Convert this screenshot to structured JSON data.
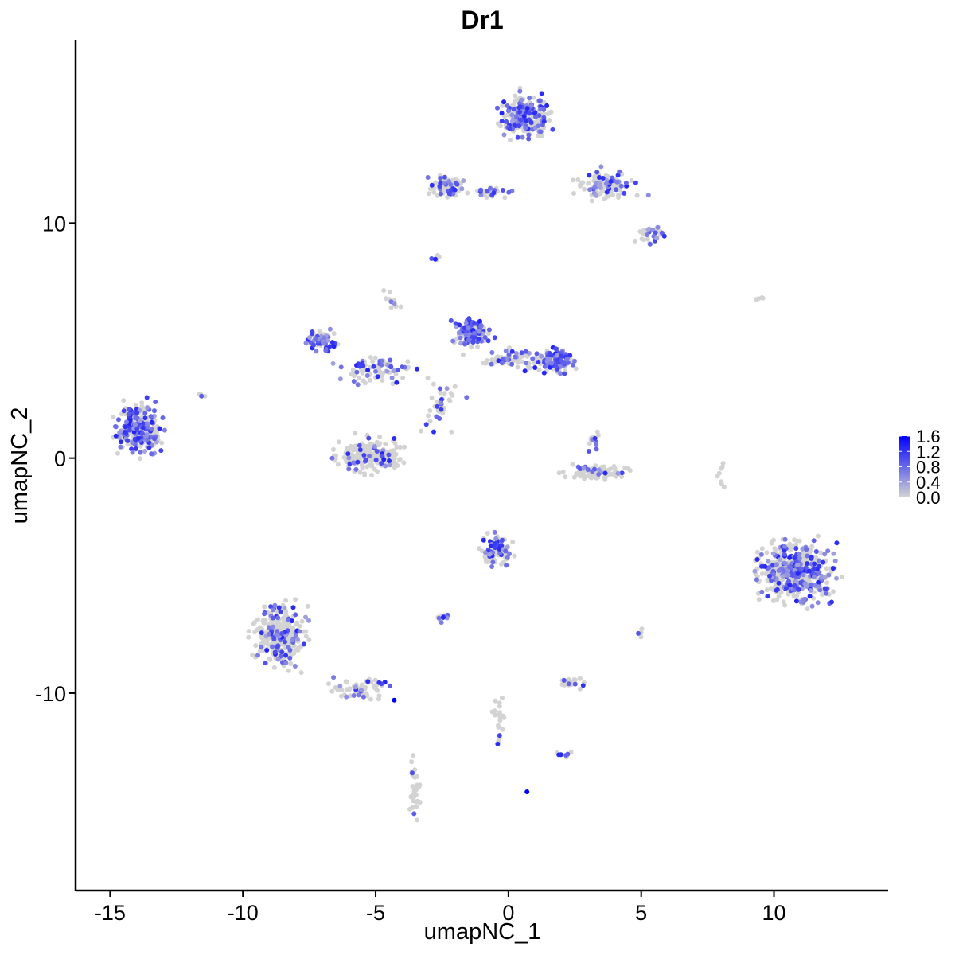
{
  "chart_data": {
    "type": "scatter",
    "title": "Dr1",
    "xlabel": "umapNC_1",
    "ylabel": "umapNC_2",
    "xlim": [
      -16.3,
      14.3
    ],
    "ylim": [
      -18.4,
      17.8
    ],
    "xticks": [
      -15,
      -10,
      -5,
      0,
      5,
      10
    ],
    "xtick_labels": [
      "-15",
      "-10",
      "-5",
      "0",
      "5",
      "10"
    ],
    "yticks": [
      -10,
      0,
      10
    ],
    "ytick_labels": [
      "-10",
      "0",
      "10"
    ],
    "grid": false,
    "legend": {
      "position": "right",
      "type": "colorbar",
      "min": 0.0,
      "max": 1.6,
      "ticks": [
        0.0,
        0.4,
        0.8,
        1.2,
        1.6
      ],
      "tick_labels": [
        "0.0",
        "0.4",
        "0.8",
        "1.2",
        "1.6"
      ],
      "low_color": "#d3d3d3",
      "high_color": "#0000ff"
    },
    "clusters": [
      {
        "cx": -13.9,
        "cy": 1.2,
        "sx": 0.75,
        "sy": 0.9,
        "n": 260,
        "expr": 0.55
      },
      {
        "cx": -11.6,
        "cy": 2.7,
        "sx": 0.15,
        "sy": 0.1,
        "n": 4,
        "expr": 0.5
      },
      {
        "cx": -7.0,
        "cy": 5.0,
        "sx": 0.5,
        "sy": 0.45,
        "n": 70,
        "expr": 0.5
      },
      {
        "cx": -5.0,
        "cy": 3.8,
        "sx": 1.3,
        "sy": 0.6,
        "n": 80,
        "expr": 0.4
      },
      {
        "cx": -5.2,
        "cy": 0.1,
        "sx": 1.1,
        "sy": 0.6,
        "n": 210,
        "expr": 0.15
      },
      {
        "cx": -4.4,
        "cy": 6.8,
        "sx": 0.25,
        "sy": 0.4,
        "n": 10,
        "expr": 0.3
      },
      {
        "cx": -1.4,
        "cy": 5.4,
        "sx": 0.55,
        "sy": 0.55,
        "n": 130,
        "expr": 0.75
      },
      {
        "cx": 1.9,
        "cy": 4.1,
        "sx": 0.6,
        "sy": 0.45,
        "n": 110,
        "expr": 0.6
      },
      {
        "cx": 0.2,
        "cy": 4.2,
        "sx": 1.2,
        "sy": 0.35,
        "n": 80,
        "expr": 0.35
      },
      {
        "cx": -2.6,
        "cy": 2.3,
        "sx": 0.6,
        "sy": 1.0,
        "n": 40,
        "expr": 0.2
      },
      {
        "cx": 3.3,
        "cy": -0.6,
        "sx": 1.0,
        "sy": 0.25,
        "n": 90,
        "expr": 0.1
      },
      {
        "cx": 3.2,
        "cy": 0.8,
        "sx": 0.25,
        "sy": 0.5,
        "n": 15,
        "expr": 0.3
      },
      {
        "cx": 0.6,
        "cy": 14.6,
        "sx": 0.8,
        "sy": 0.75,
        "n": 260,
        "expr": 0.35
      },
      {
        "cx": 3.6,
        "cy": 11.6,
        "sx": 1.0,
        "sy": 0.55,
        "n": 100,
        "expr": 0.3
      },
      {
        "cx": 5.4,
        "cy": 9.5,
        "sx": 0.5,
        "sy": 0.35,
        "n": 30,
        "expr": 0.3
      },
      {
        "cx": -2.3,
        "cy": 11.6,
        "sx": 0.6,
        "sy": 0.4,
        "n": 70,
        "expr": 0.45
      },
      {
        "cx": -0.6,
        "cy": 11.3,
        "sx": 0.8,
        "sy": 0.15,
        "n": 30,
        "expr": 0.35
      },
      {
        "cx": -2.7,
        "cy": 8.5,
        "sx": 0.15,
        "sy": 0.12,
        "n": 6,
        "expr": 0.5
      },
      {
        "cx": -8.6,
        "cy": -7.5,
        "sx": 0.8,
        "sy": 1.2,
        "n": 300,
        "expr": 0.3
      },
      {
        "cx": -5.6,
        "cy": -9.8,
        "sx": 0.9,
        "sy": 0.5,
        "n": 60,
        "expr": 0.25
      },
      {
        "cx": -3.5,
        "cy": -14.0,
        "sx": 0.25,
        "sy": 1.3,
        "n": 35,
        "expr": 0.1
      },
      {
        "cx": -0.4,
        "cy": -3.9,
        "sx": 0.55,
        "sy": 0.55,
        "n": 110,
        "expr": 0.3
      },
      {
        "cx": -2.5,
        "cy": -6.8,
        "sx": 0.3,
        "sy": 0.15,
        "n": 15,
        "expr": 0.45
      },
      {
        "cx": 2.3,
        "cy": -9.6,
        "sx": 0.55,
        "sy": 0.2,
        "n": 30,
        "expr": 0.2
      },
      {
        "cx": 2.2,
        "cy": -12.6,
        "sx": 0.25,
        "sy": 0.15,
        "n": 8,
        "expr": 0.4
      },
      {
        "cx": -0.4,
        "cy": -11.0,
        "sx": 0.2,
        "sy": 1.2,
        "n": 20,
        "expr": 0.15
      },
      {
        "cx": 10.8,
        "cy": -4.8,
        "sx": 1.2,
        "sy": 1.2,
        "n": 520,
        "expr": 0.35
      },
      {
        "cx": 5.0,
        "cy": -7.4,
        "sx": 0.1,
        "sy": 0.2,
        "n": 5,
        "expr": 0.2
      },
      {
        "cx": 8.0,
        "cy": -0.5,
        "sx": 0.15,
        "sy": 0.6,
        "n": 8,
        "expr": 0.05
      },
      {
        "cx": 9.4,
        "cy": 6.8,
        "sx": 0.2,
        "sy": 0.06,
        "n": 4,
        "expr": 0.0
      }
    ],
    "highlight_points": [
      {
        "x": 0.7,
        "y": -14.2,
        "value": 1.6
      },
      {
        "x": -4.3,
        "y": -10.3,
        "value": 1.6
      }
    ]
  }
}
